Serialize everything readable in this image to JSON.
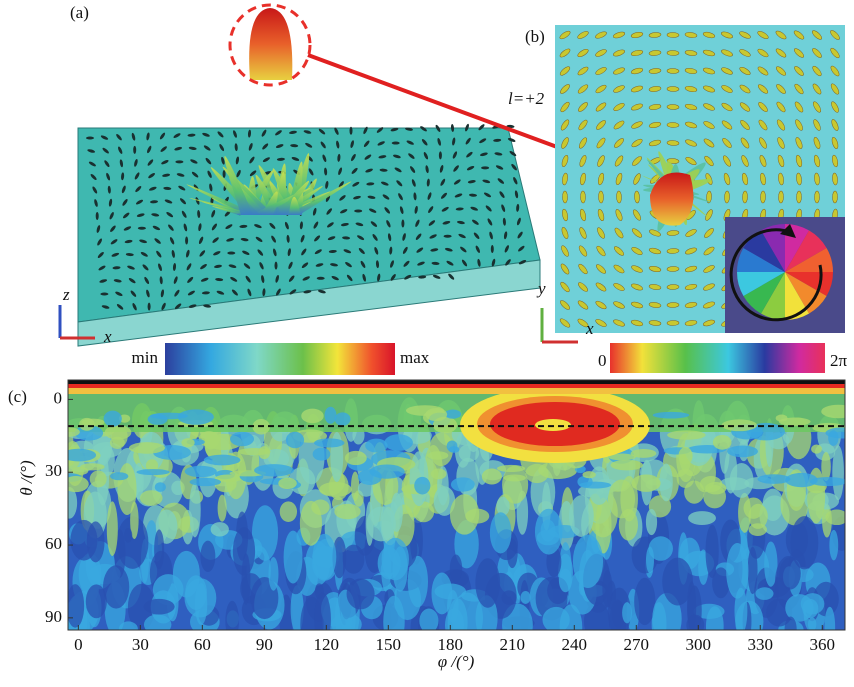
{
  "panel_a": {
    "label": "(a)",
    "axis_vertical": "z",
    "axis_horizontal": "x",
    "colorbar_min": "min",
    "colorbar_max": "max"
  },
  "panel_b": {
    "label": "(b)",
    "annotation": "l=+2",
    "axis_vertical": "y",
    "axis_horizontal": "x",
    "colorbar_min": "0",
    "colorbar_max": "2π"
  },
  "chart_data": {
    "type": "heatmap",
    "label": "(c)",
    "xlabel": "φ /(°)",
    "ylabel": "θ /(°)",
    "xlim": [
      -5,
      371
    ],
    "ylim": [
      95,
      -8
    ],
    "xticks": [
      0,
      30,
      60,
      90,
      120,
      150,
      180,
      210,
      240,
      270,
      300,
      330,
      360
    ],
    "yticks": [
      0,
      30,
      60,
      90
    ],
    "reference_line": 11
  }
}
